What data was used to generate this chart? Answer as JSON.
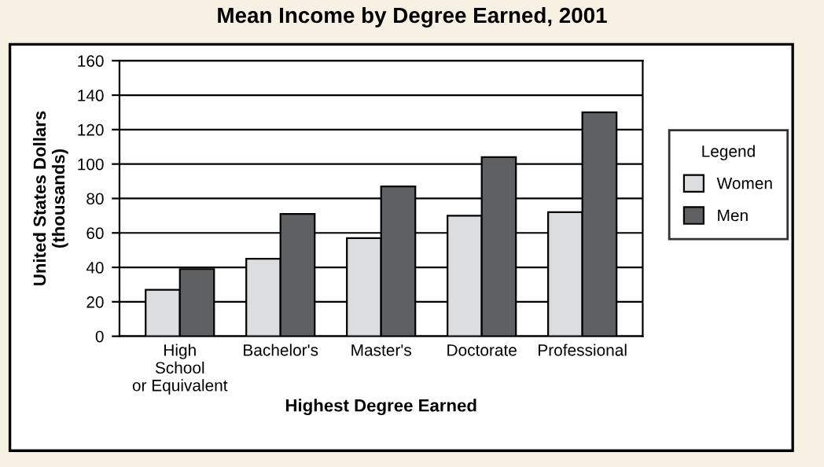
{
  "chart_data": {
    "type": "bar",
    "title": "Mean Income by Degree Earned, 2001",
    "xlabel": "Highest Degree Earned",
    "ylabel": "United States Dollars\n(thousands)",
    "legend_title": "Legend",
    "categories": [
      "High\nSchool\nor Equivalent",
      "Bachelor's",
      "Master's",
      "Doctorate",
      "Professional"
    ],
    "series": [
      {
        "name": "Women",
        "color": "#dcdddf",
        "values": [
          27,
          45,
          57,
          70,
          72
        ]
      },
      {
        "name": "Men",
        "color": "#5f6062",
        "values": [
          39,
          71,
          87,
          104,
          130
        ]
      }
    ],
    "ylim": [
      0,
      160
    ],
    "yticks": [
      0,
      20,
      40,
      60,
      80,
      100,
      120,
      140,
      160
    ],
    "grid": "y",
    "legend": "right"
  }
}
